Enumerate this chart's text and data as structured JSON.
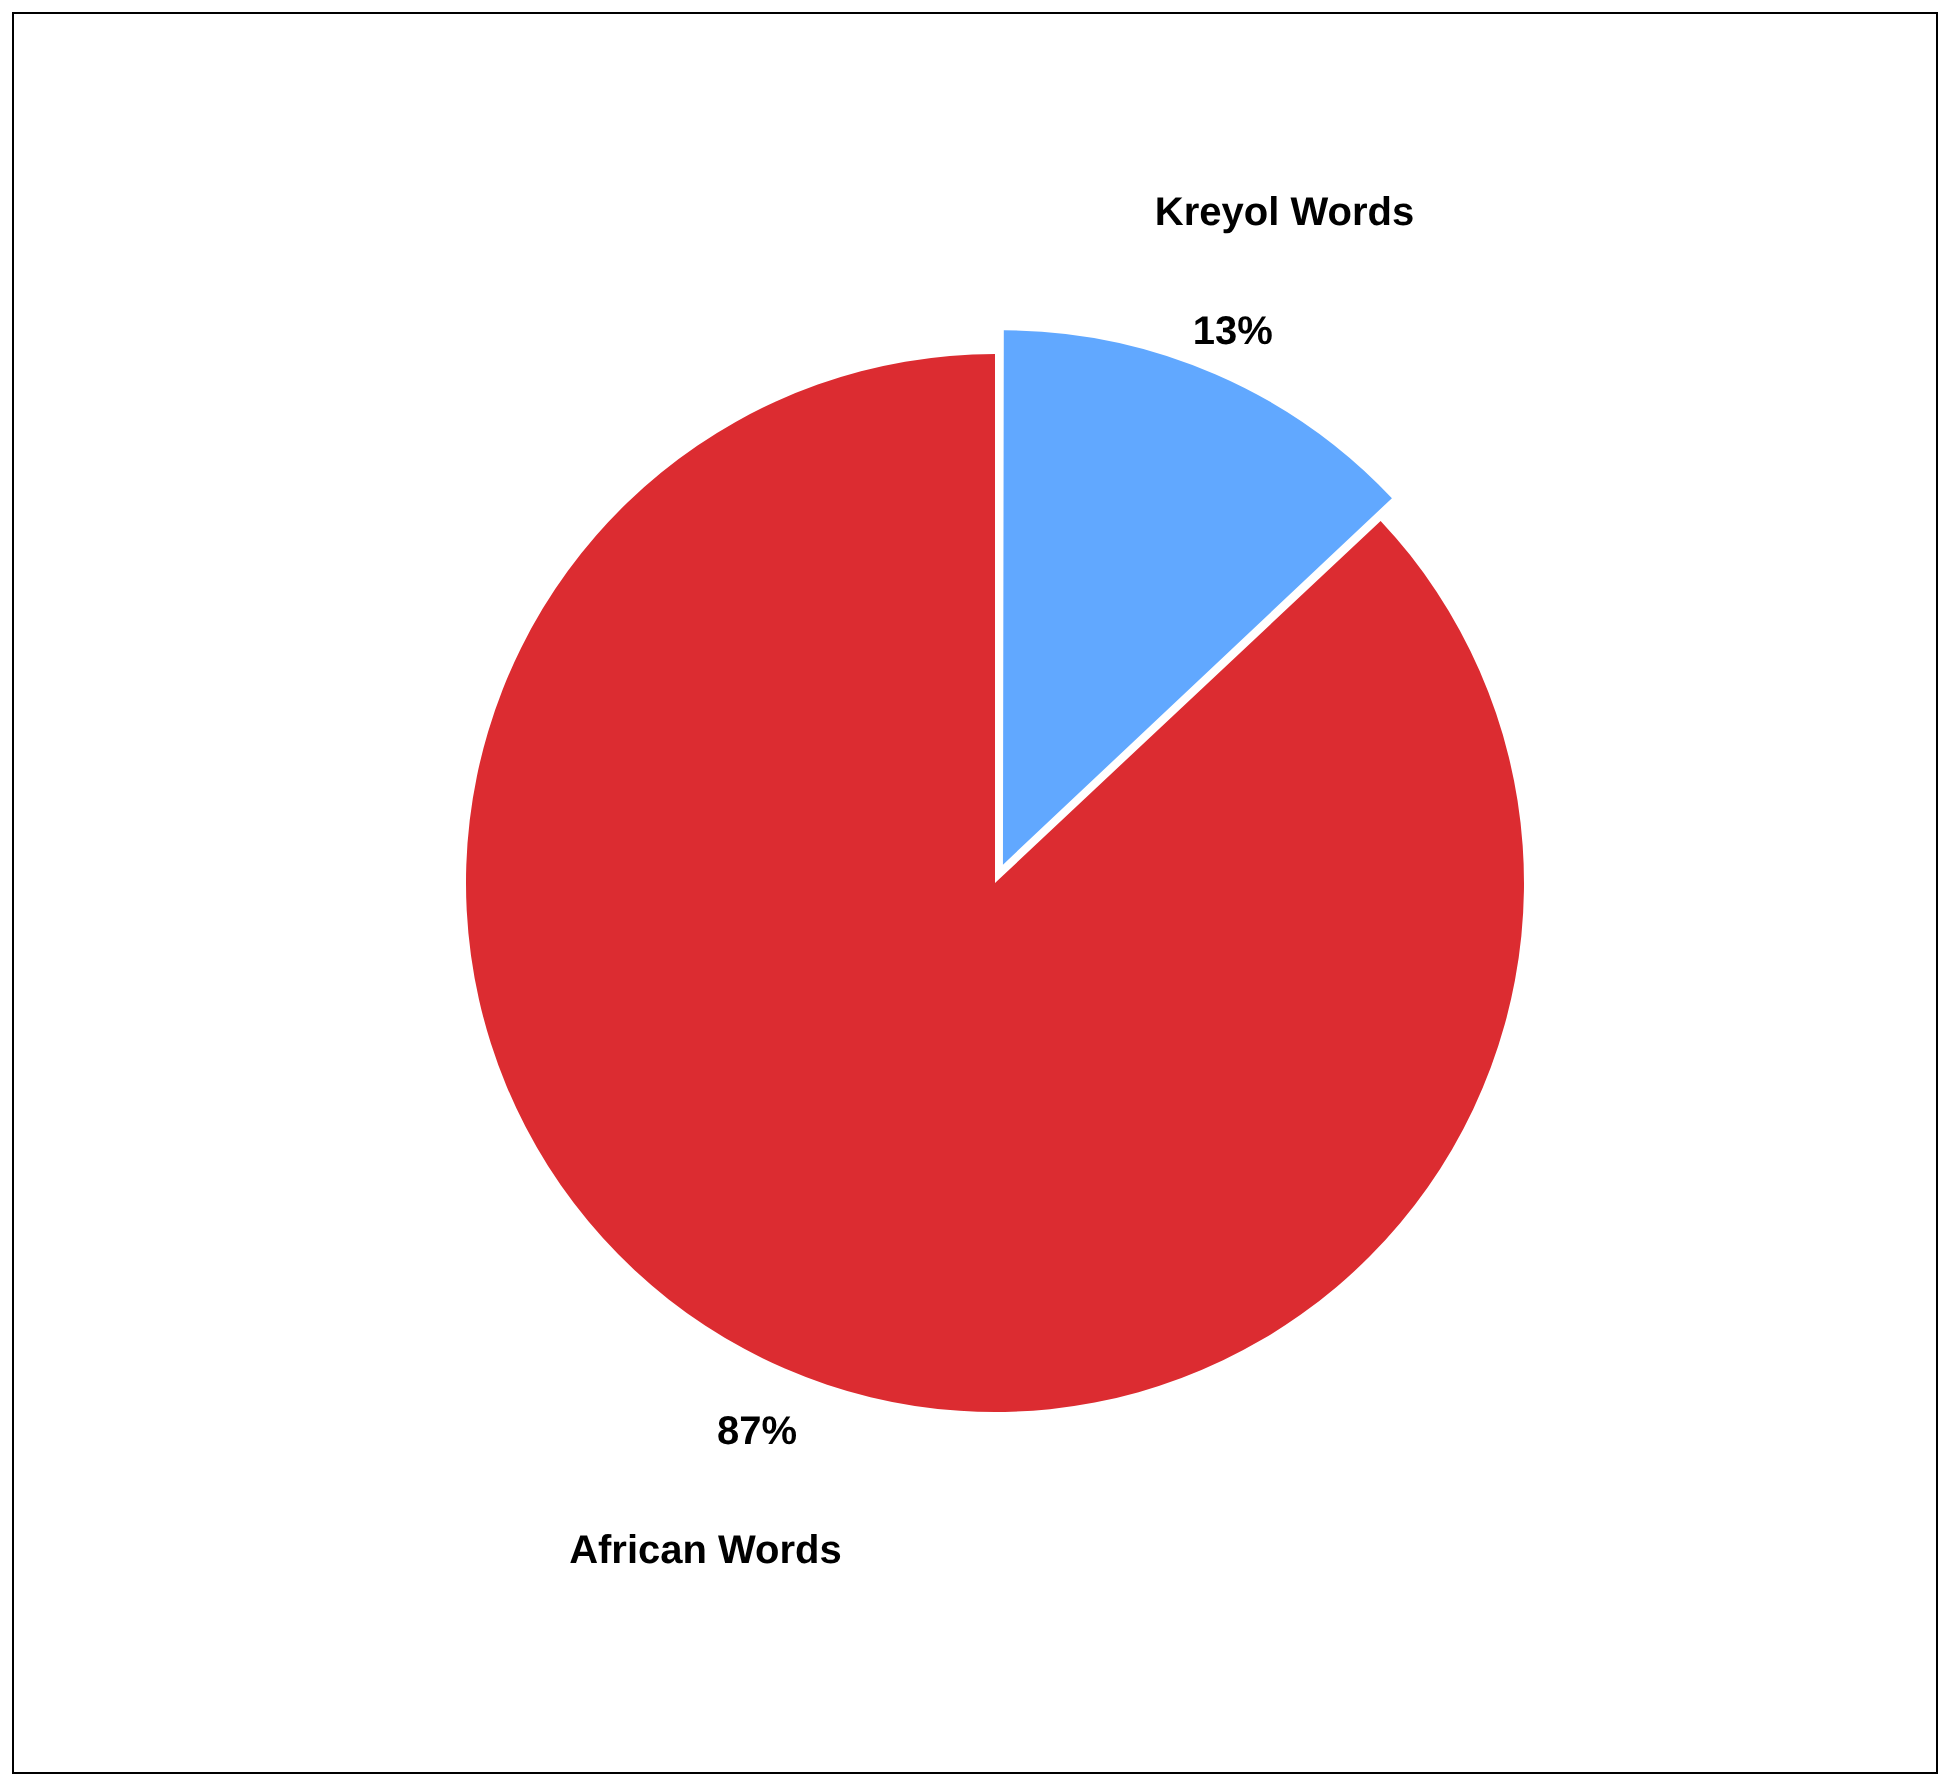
{
  "chart_data": {
    "type": "pie",
    "categories": [
      "Kreyol Words",
      "African Words"
    ],
    "values": [
      13,
      87
    ],
    "colors": [
      "#61a8ff",
      "#dc2c31"
    ],
    "value_labels": [
      "13%",
      "87%"
    ],
    "legend": false
  }
}
